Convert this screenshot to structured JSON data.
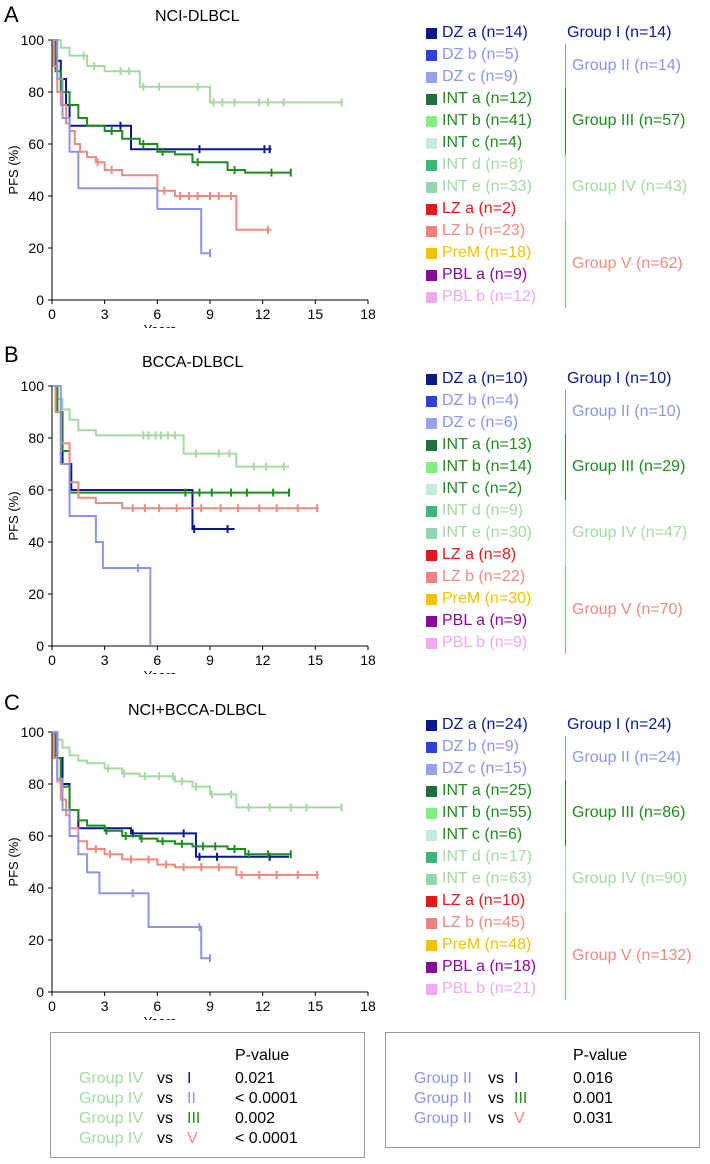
{
  "colors": {
    "group1": "#0a1a8a",
    "group2": "#8c95e6",
    "group3": "#1e8c1e",
    "group4": "#a4d9a4",
    "group5": "#ef8a80",
    "dz_a": "#0a1a8a",
    "dz_b": "#3040e0",
    "dz_c": "#9aa0f0",
    "int_a": "#1e6e40",
    "int_b": "#80f080",
    "int_c": "#c4ecd8",
    "int_d": "#3ab87a",
    "int_e": "#8fd8b0",
    "lz_a": "#e41a1a",
    "lz_b": "#f08080",
    "prem": "#f2c200",
    "pbl_a": "#8a0a9a",
    "pbl_b": "#f0a8f0",
    "grp2_text": "#8c95e6",
    "grp4_text": "#a4d9a4",
    "grp5_text": "#ef8a80",
    "grp3_text": "#1e8c1e",
    "grp1_text": "#0a1a8a"
  },
  "panels": [
    {
      "letter": "A",
      "title": "NCI-DLBCL",
      "legend": [
        {
          "label": "DZ a (n=14)",
          "color": "dz_a",
          "text": "grp1_text"
        },
        {
          "label": "DZ b (n=5)",
          "color": "dz_b",
          "text": "grp2_text"
        },
        {
          "label": "DZ c (n=9)",
          "color": "dz_c",
          "text": "grp2_text"
        },
        {
          "label": "INT a (n=12)",
          "color": "int_a",
          "text": "grp3_text"
        },
        {
          "label": "INT b (n=41)",
          "color": "int_b",
          "text": "grp3_text"
        },
        {
          "label": "INT c (n=4)",
          "color": "int_c",
          "text": "grp3_text"
        },
        {
          "label": "INT d (n=8)",
          "color": "int_d",
          "text": "grp4_text"
        },
        {
          "label": "INT e (n=33)",
          "color": "int_e",
          "text": "grp4_text"
        },
        {
          "label": "LZ a (n=2)",
          "color": "lz_a",
          "text": "lz_a"
        },
        {
          "label": "LZ b (n=23)",
          "color": "lz_b",
          "text": "grp5_text"
        },
        {
          "label": "PreM (n=18)",
          "color": "prem",
          "text": "prem"
        },
        {
          "label": "PBL a (n=9)",
          "color": "pbl_a",
          "text": "pbl_a"
        },
        {
          "label": "PBL b (n=12)",
          "color": "pbl_b",
          "text": "pbl_b"
        }
      ],
      "groups": [
        {
          "label": "Group I (n=14)",
          "text": "grp1_text"
        },
        {
          "label": "Group II (n=14)",
          "text": "grp2_text"
        },
        {
          "label": "Group III (n=57)",
          "text": "grp3_text"
        },
        {
          "label": "Group IV (n=43)",
          "text": "grp4_text"
        },
        {
          "label": "Group V (n=62)",
          "text": "grp5_text"
        }
      ]
    },
    {
      "letter": "B",
      "title": "BCCA-DLBCL",
      "legend": [
        {
          "label": "DZ a (n=10)",
          "color": "dz_a",
          "text": "grp1_text"
        },
        {
          "label": "DZ b (n=4)",
          "color": "dz_b",
          "text": "grp2_text"
        },
        {
          "label": "DZ c (n=6)",
          "color": "dz_c",
          "text": "grp2_text"
        },
        {
          "label": "INT a (n=13)",
          "color": "int_a",
          "text": "grp3_text"
        },
        {
          "label": "INT b (n=14)",
          "color": "int_b",
          "text": "grp3_text"
        },
        {
          "label": "INT c (n=2)",
          "color": "int_c",
          "text": "grp3_text"
        },
        {
          "label": "INT d (n=9)",
          "color": "int_d",
          "text": "grp4_text"
        },
        {
          "label": "INT e (n=30)",
          "color": "int_e",
          "text": "grp4_text"
        },
        {
          "label": "LZ a (n=8)",
          "color": "lz_a",
          "text": "lz_a"
        },
        {
          "label": "LZ b (n=22)",
          "color": "lz_b",
          "text": "grp5_text"
        },
        {
          "label": "PreM (n=30)",
          "color": "prem",
          "text": "prem"
        },
        {
          "label": "PBL a (n=9)",
          "color": "pbl_a",
          "text": "pbl_a"
        },
        {
          "label": "PBL b (n=9)",
          "color": "pbl_b",
          "text": "pbl_b"
        }
      ],
      "groups": [
        {
          "label": "Group I (n=10)",
          "text": "grp1_text"
        },
        {
          "label": "Group II (n=10)",
          "text": "grp2_text"
        },
        {
          "label": "Group III (n=29)",
          "text": "grp3_text"
        },
        {
          "label": "Group IV (n=47)",
          "text": "grp4_text"
        },
        {
          "label": "Group V (n=70)",
          "text": "grp5_text"
        }
      ]
    },
    {
      "letter": "C",
      "title": "NCI+BCCA-DLBCL",
      "legend": [
        {
          "label": "DZ a (n=24)",
          "color": "dz_a",
          "text": "grp1_text"
        },
        {
          "label": "DZ b (n=9)",
          "color": "dz_b",
          "text": "grp2_text"
        },
        {
          "label": "DZ c (n=15)",
          "color": "dz_c",
          "text": "grp2_text"
        },
        {
          "label": "INT a (n=25)",
          "color": "int_a",
          "text": "grp3_text"
        },
        {
          "label": "INT b (n=55)",
          "color": "int_b",
          "text": "grp3_text"
        },
        {
          "label": "INT c (n=6)",
          "color": "int_c",
          "text": "grp3_text"
        },
        {
          "label": "INT d (n=17)",
          "color": "int_d",
          "text": "grp4_text"
        },
        {
          "label": "INT e (n=63)",
          "color": "int_e",
          "text": "grp4_text"
        },
        {
          "label": "LZ a (n=10)",
          "color": "lz_a",
          "text": "lz_a"
        },
        {
          "label": "LZ b (n=45)",
          "color": "lz_b",
          "text": "grp5_text"
        },
        {
          "label": "PreM (n=48)",
          "color": "prem",
          "text": "prem"
        },
        {
          "label": "PBL a (n=18)",
          "color": "pbl_a",
          "text": "pbl_a"
        },
        {
          "label": "PBL b (n=21)",
          "color": "pbl_b",
          "text": "pbl_b"
        }
      ],
      "groups": [
        {
          "label": "Group I (n=24)",
          "text": "grp1_text"
        },
        {
          "label": "Group II (n=24)",
          "text": "grp2_text"
        },
        {
          "label": "Group III (n=86)",
          "text": "grp3_text"
        },
        {
          "label": "Group IV (n=90)",
          "text": "grp4_text"
        },
        {
          "label": "Group V (n=132)",
          "text": "grp5_text"
        }
      ]
    }
  ],
  "chart_data": [
    {
      "type": "line",
      "title": "NCI-DLBCL",
      "xlabel": "Years",
      "ylabel": "PFS (%)",
      "xlim": [
        0,
        18
      ],
      "ylim": [
        0,
        100
      ],
      "xticks": [
        "0",
        "3",
        "6",
        "9",
        "12",
        "15",
        "18"
      ],
      "yticks": [
        "0",
        "20",
        "40",
        "60",
        "80",
        "100"
      ],
      "series": [
        {
          "name": "Group IV",
          "color": "group4",
          "x": [
            0,
            0.5,
            1,
            2,
            3,
            5,
            9,
            16.5
          ],
          "y": [
            100,
            97,
            94,
            90,
            88,
            82,
            76,
            76
          ],
          "censor": [
            1.8,
            2.4,
            3.9,
            4.4,
            5.2,
            6.1,
            8.3,
            9.2,
            9.7,
            10.4,
            11.8,
            12.3,
            13.2,
            16.5
          ]
        },
        {
          "name": "Group I",
          "color": "group1",
          "x": [
            0,
            0.2,
            0.5,
            0.8,
            1,
            4.5,
            8,
            12.5
          ],
          "y": [
            100,
            92,
            85,
            75,
            67,
            58,
            58,
            58
          ],
          "censor": [
            3.9,
            8.4,
            12.1,
            12.4
          ]
        },
        {
          "name": "Group III",
          "color": "group3",
          "x": [
            0,
            0.2,
            0.5,
            1,
            1.5,
            2,
            3,
            4,
            5,
            6,
            7,
            8,
            10,
            11,
            13.6
          ],
          "y": [
            100,
            88,
            80,
            75,
            70,
            67,
            65,
            62,
            60,
            57,
            56,
            53,
            50,
            49,
            49
          ],
          "censor": [
            3.4,
            5.2,
            6.3,
            8.3,
            10.4,
            12.5,
            13.6
          ]
        },
        {
          "name": "Group V",
          "color": "group5",
          "x": [
            0,
            0.1,
            0.3,
            0.5,
            0.8,
            1,
            1.3,
            1.6,
            2,
            2.5,
            3,
            4,
            6,
            7,
            10.5,
            12.5
          ],
          "y": [
            100,
            90,
            80,
            75,
            68,
            65,
            60,
            57,
            55,
            53,
            50,
            48,
            42,
            40,
            27,
            27
          ],
          "censor": [
            2.6,
            3.4,
            6.4,
            7.3,
            7.8,
            8.3,
            9,
            9.5,
            10.2,
            12.3
          ]
        },
        {
          "name": "Group II",
          "color": "group2",
          "x": [
            0,
            0.3,
            0.6,
            1,
            1.5,
            6,
            8.5,
            9
          ],
          "y": [
            100,
            85,
            70,
            57,
            43,
            35,
            18,
            18
          ],
          "censor": [
            9
          ]
        }
      ]
    },
    {
      "type": "line",
      "title": "BCCA-DLBCL",
      "xlabel": "Years",
      "ylabel": "PFS (%)",
      "xlim": [
        0,
        18
      ],
      "ylim": [
        0,
        100
      ],
      "xticks": [
        "0",
        "3",
        "6",
        "9",
        "12",
        "15",
        "18"
      ],
      "yticks": [
        "0",
        "20",
        "40",
        "60",
        "80",
        "100"
      ],
      "series": [
        {
          "name": "Group IV",
          "color": "group4",
          "x": [
            0,
            0.3,
            0.6,
            1,
            1.5,
            2.5,
            7.5,
            10.5,
            13.5
          ],
          "y": [
            100,
            95,
            91,
            87,
            83,
            81,
            74,
            69,
            69
          ],
          "censor": [
            5.2,
            5.5,
            5.9,
            6.2,
            6.6,
            7.0,
            8.2,
            9.5,
            10.1,
            11.5,
            12.2,
            13.2
          ]
        },
        {
          "name": "Group I",
          "color": "group1",
          "x": [
            0,
            0.3,
            0.6,
            1.1,
            8,
            10.4
          ],
          "y": [
            100,
            90,
            70,
            60,
            45,
            45
          ],
          "censor": [
            8.1,
            10
          ]
        },
        {
          "name": "Group III",
          "color": "group3",
          "x": [
            0,
            0.3,
            0.6,
            1,
            13.5
          ],
          "y": [
            100,
            90,
            75,
            59,
            59
          ],
          "censor": [
            7.6,
            8.4,
            9.1,
            10.2,
            11.1,
            12.6,
            13.5
          ]
        },
        {
          "name": "Group V",
          "color": "group5",
          "x": [
            0,
            0.2,
            0.5,
            1,
            1.5,
            2.5,
            4,
            15.2
          ],
          "y": [
            100,
            90,
            78,
            63,
            57,
            55,
            53,
            53
          ],
          "censor": [
            4.6,
            5.3,
            6.1,
            7.1,
            8.5,
            9.6,
            10.6,
            11.8,
            12.8,
            14,
            15.1
          ]
        },
        {
          "name": "Group II",
          "color": "group2",
          "x": [
            0,
            0.5,
            1,
            2.5,
            2.9,
            5.6
          ],
          "y": [
            100,
            70,
            50,
            40,
            30,
            0
          ],
          "censor": [
            4.9
          ]
        }
      ]
    },
    {
      "type": "line",
      "title": "NCI+BCCA-DLBCL",
      "xlabel": "Years",
      "ylabel": "PFS (%)",
      "xlim": [
        0,
        18
      ],
      "ylim": [
        0,
        100
      ],
      "xticks": [
        "0",
        "3",
        "6",
        "9",
        "12",
        "15",
        "18"
      ],
      "yticks": [
        "0",
        "20",
        "40",
        "60",
        "80",
        "100"
      ],
      "series": [
        {
          "name": "Group IV",
          "color": "group4",
          "x": [
            0,
            0.3,
            0.6,
            1,
            1.5,
            2,
            3,
            4,
            5,
            7,
            8,
            9,
            10.5,
            16.5
          ],
          "y": [
            100,
            97,
            94,
            91,
            89,
            88,
            86,
            84,
            83,
            81,
            79,
            76,
            71,
            71
          ],
          "censor": [
            3.2,
            4.1,
            5.3,
            6.1,
            6.9,
            7.4,
            8.2,
            9.1,
            10.2,
            11.2,
            12.4,
            13.6,
            14.5,
            16.5
          ]
        },
        {
          "name": "Group I",
          "color": "group1",
          "x": [
            0,
            0.3,
            0.6,
            1,
            1.5,
            4.5,
            8.2,
            13.5
          ],
          "y": [
            100,
            90,
            80,
            70,
            63,
            61,
            52,
            52
          ],
          "censor": [
            4.6,
            7.5,
            8.4,
            9.4,
            12.4
          ]
        },
        {
          "name": "Group III",
          "color": "group3",
          "x": [
            0,
            0.2,
            0.5,
            1,
            1.5,
            2,
            3,
            4,
            5,
            6,
            7,
            8,
            10,
            11,
            13.6
          ],
          "y": [
            100,
            90,
            79,
            70,
            66,
            64,
            62,
            60,
            59,
            58,
            57,
            56,
            55,
            53,
            53
          ],
          "censor": [
            3.1,
            4.2,
            5.1,
            6.3,
            7.4,
            8.6,
            9.3,
            10.4,
            11.2,
            12.3,
            13.6
          ]
        },
        {
          "name": "Group V",
          "color": "group5",
          "x": [
            0,
            0.1,
            0.3,
            0.5,
            0.8,
            1,
            1.5,
            2,
            3,
            4,
            6,
            7,
            10.5,
            15.2
          ],
          "y": [
            100,
            90,
            81,
            74,
            68,
            63,
            58,
            55,
            53,
            51,
            49,
            48,
            45,
            45
          ],
          "censor": [
            2.5,
            3.3,
            4.5,
            5.5,
            6.5,
            7.5,
            8.5,
            9.5,
            10.8,
            11.8,
            12.8,
            14,
            15.1
          ]
        },
        {
          "name": "Group II",
          "color": "group2",
          "x": [
            0,
            0.3,
            0.6,
            1,
            1.5,
            2,
            2.7,
            5.5,
            8.5,
            9
          ],
          "y": [
            100,
            82,
            70,
            60,
            53,
            46,
            38,
            25,
            13,
            13
          ],
          "censor": [
            4.6,
            8.4,
            9
          ]
        }
      ]
    }
  ],
  "pvalues_left": {
    "header": "P-value",
    "rows": [
      {
        "a": "Group IV",
        "vs": "vs",
        "b": "I",
        "a_color": "grp4_text",
        "b_color": "grp1_text",
        "p": "0.021"
      },
      {
        "a": "Group IV",
        "vs": "vs",
        "b": "II",
        "a_color": "grp4_text",
        "b_color": "grp2_text",
        "p": "< 0.0001"
      },
      {
        "a": "Group IV",
        "vs": "vs",
        "b": "III",
        "a_color": "grp4_text",
        "b_color": "grp3_text",
        "p": "0.002"
      },
      {
        "a": "Group IV",
        "vs": "vs",
        "b": "V",
        "a_color": "grp4_text",
        "b_color": "grp5_text",
        "p": "< 0.0001"
      }
    ]
  },
  "pvalues_right": {
    "header": "P-value",
    "rows": [
      {
        "a": "Group II",
        "vs": "vs",
        "b": "I",
        "a_color": "grp2_text",
        "b_color": "grp1_text",
        "p": "0.016"
      },
      {
        "a": "Group II",
        "vs": "vs",
        "b": "III",
        "a_color": "grp2_text",
        "b_color": "grp3_text",
        "p": "0.001"
      },
      {
        "a": "Group II",
        "vs": "vs",
        "b": "V",
        "a_color": "grp2_text",
        "b_color": "grp5_text",
        "p": "0.031"
      }
    ]
  }
}
